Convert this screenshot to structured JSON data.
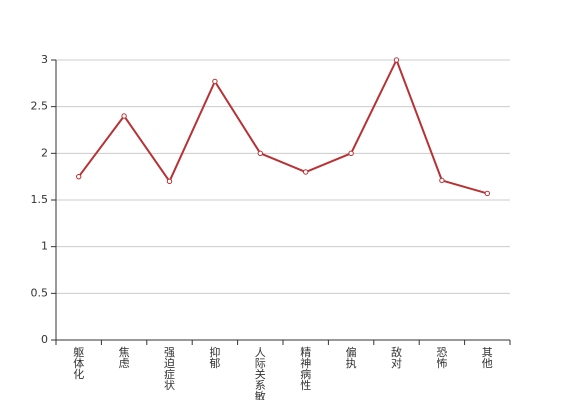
{
  "chart_data": {
    "type": "line",
    "categories": [
      "躯体化",
      "焦虑",
      "强迫症状",
      "抑郁",
      "人际关系敏感",
      "精神病性",
      "偏执",
      "敌对",
      "恐怖",
      "其他"
    ],
    "series": [
      {
        "color": "#b83235",
        "values": [
          1.75,
          2.4,
          1.7,
          2.77,
          2.0,
          1.8,
          2.0,
          3.0,
          1.71,
          1.57
        ]
      }
    ],
    "ylim": [
      0,
      3
    ],
    "yticks": [
      0,
      0.5,
      1,
      1.5,
      2,
      2.5,
      3
    ],
    "grid": true
  }
}
